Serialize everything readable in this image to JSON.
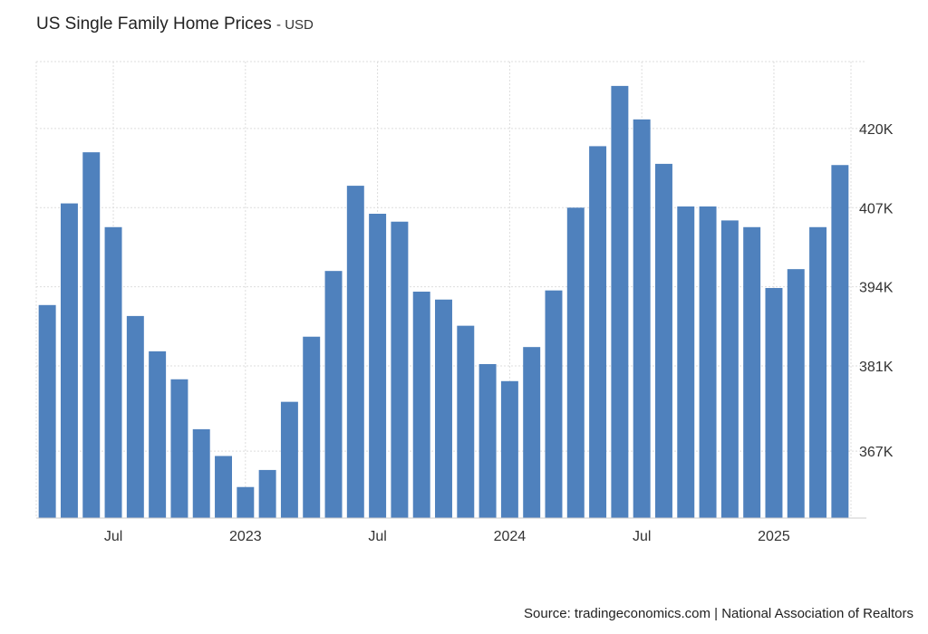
{
  "header": {
    "title": "US Single Family Home Prices",
    "subtitle": "- USD"
  },
  "footer": {
    "source": "Source: tradingeconomics.com | National Association of Realtors"
  },
  "colors": {
    "bar": "#4f81bd",
    "grid": "#dddddd",
    "text": "#333333"
  },
  "chart_data": {
    "type": "bar",
    "title": "US Single Family Home Prices",
    "xlabel": "",
    "ylabel": "",
    "grid": true,
    "ylim": [
      356,
      431
    ],
    "y_ticks": [
      367,
      381,
      394,
      407,
      420
    ],
    "y_tick_labels": [
      "367K",
      "381K",
      "394K",
      "407K",
      "420K"
    ],
    "x_tick_labels": [
      {
        "label": "Jul",
        "index": 3
      },
      {
        "label": "2023",
        "index": 9
      },
      {
        "label": "Jul",
        "index": 15
      },
      {
        "label": "2024",
        "index": 21
      },
      {
        "label": "Jul",
        "index": 27
      },
      {
        "label": "2025",
        "index": 33
      }
    ],
    "categories": [
      "2022-04",
      "2022-05",
      "2022-06",
      "2022-07",
      "2022-08",
      "2022-09",
      "2022-10",
      "2022-11",
      "2022-12",
      "2023-01",
      "2023-02",
      "2023-03",
      "2023-04",
      "2023-05",
      "2023-06",
      "2023-07",
      "2023-08",
      "2023-09",
      "2023-10",
      "2023-11",
      "2023-12",
      "2024-01",
      "2024-02",
      "2024-03",
      "2024-04",
      "2024-05",
      "2024-06",
      "2024-07",
      "2024-08",
      "2024-09",
      "2024-10",
      "2024-11",
      "2024-12",
      "2025-01",
      "2025-02",
      "2025-03",
      "2025-04"
    ],
    "values": [
      391,
      407.7,
      416.1,
      403.8,
      389.2,
      383.4,
      378.8,
      370.6,
      366.2,
      361.1,
      363.9,
      375.1,
      385.8,
      396.6,
      410.6,
      406,
      404.7,
      393.2,
      391.9,
      387.6,
      381.3,
      378.5,
      384.1,
      393.4,
      407,
      417.1,
      427,
      421.5,
      414.2,
      407.2,
      407.2,
      404.9,
      403.8,
      393.8,
      396.9,
      403.8,
      414
    ]
  }
}
